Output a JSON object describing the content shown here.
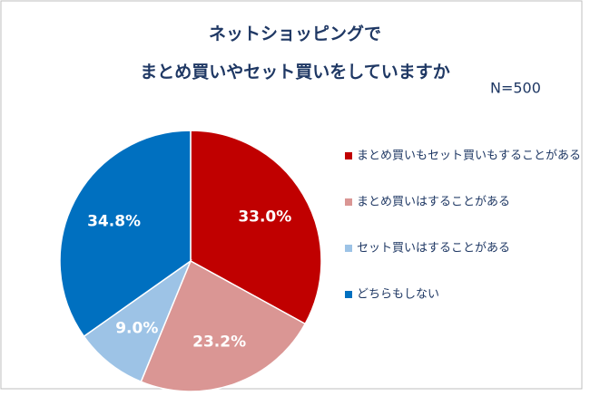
{
  "chart_data": {
    "type": "pie",
    "title": [
      "ネットショッピングで",
      "まとめ買いやセット買いをしていますか"
    ],
    "annotation": "N=500",
    "categories": [
      "まとめ買いもセット買いもすることがある",
      "まとめ買いはすることがある",
      "セット買いはすることがある",
      "どちらもしない"
    ],
    "values": [
      33.0,
      23.2,
      9.0,
      34.8
    ],
    "value_labels": [
      "33.0%",
      "23.2%",
      "9.0%",
      "34.8%"
    ],
    "colors": [
      "#c00000",
      "#da9694",
      "#9dc3e6",
      "#0070c0"
    ],
    "legend": "right"
  }
}
